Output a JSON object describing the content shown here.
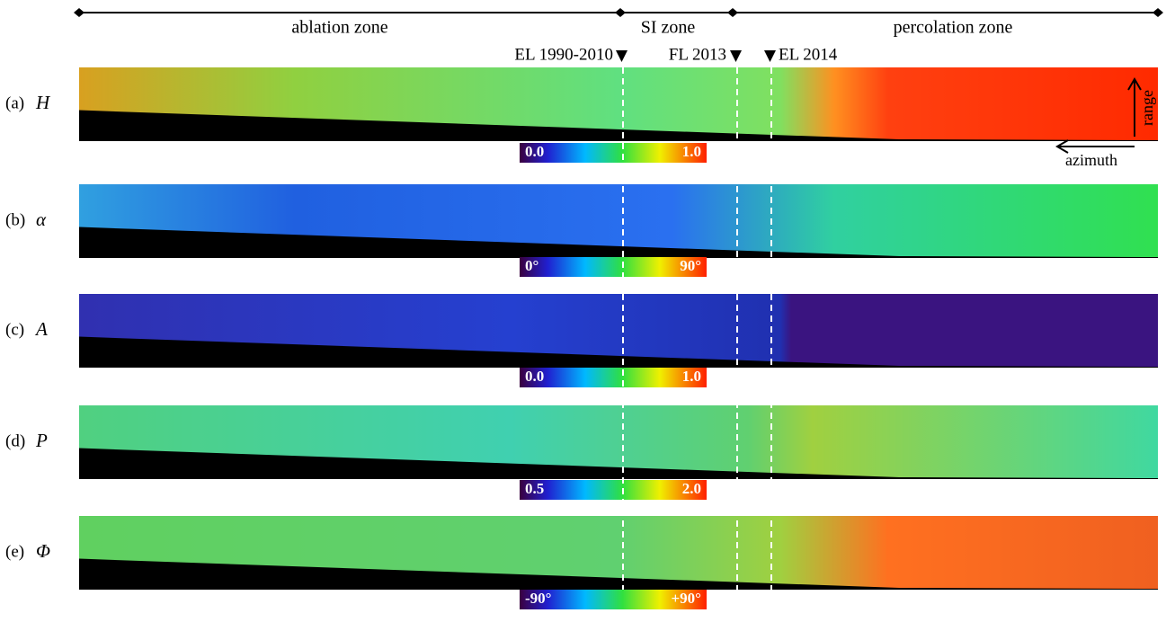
{
  "zones": [
    {
      "label": "ablation zone"
    },
    {
      "label": "SI zone"
    },
    {
      "label": "percolation zone"
    }
  ],
  "markers": [
    {
      "label": "EL 1990-2010"
    },
    {
      "label": "FL 2013"
    },
    {
      "label": "EL 2014"
    }
  ],
  "arrows": {
    "vertical": "range",
    "horizontal": "azimuth"
  },
  "panels": [
    {
      "tag": "(a)",
      "symbol": "H",
      "colorbar": {
        "min": "0.0",
        "max": "1.0"
      }
    },
    {
      "tag": "(b)",
      "symbol": "α",
      "colorbar": {
        "min": "0°",
        "max": "90°"
      }
    },
    {
      "tag": "(c)",
      "symbol": "A",
      "colorbar": {
        "min": "0.0",
        "max": "1.0"
      }
    },
    {
      "tag": "(d)",
      "symbol": "P",
      "colorbar": {
        "min": "0.5",
        "max": "2.0"
      }
    },
    {
      "tag": "(e)",
      "symbol": "Φ",
      "colorbar": {
        "min": "-90°",
        "max": "+90°"
      }
    }
  ]
}
